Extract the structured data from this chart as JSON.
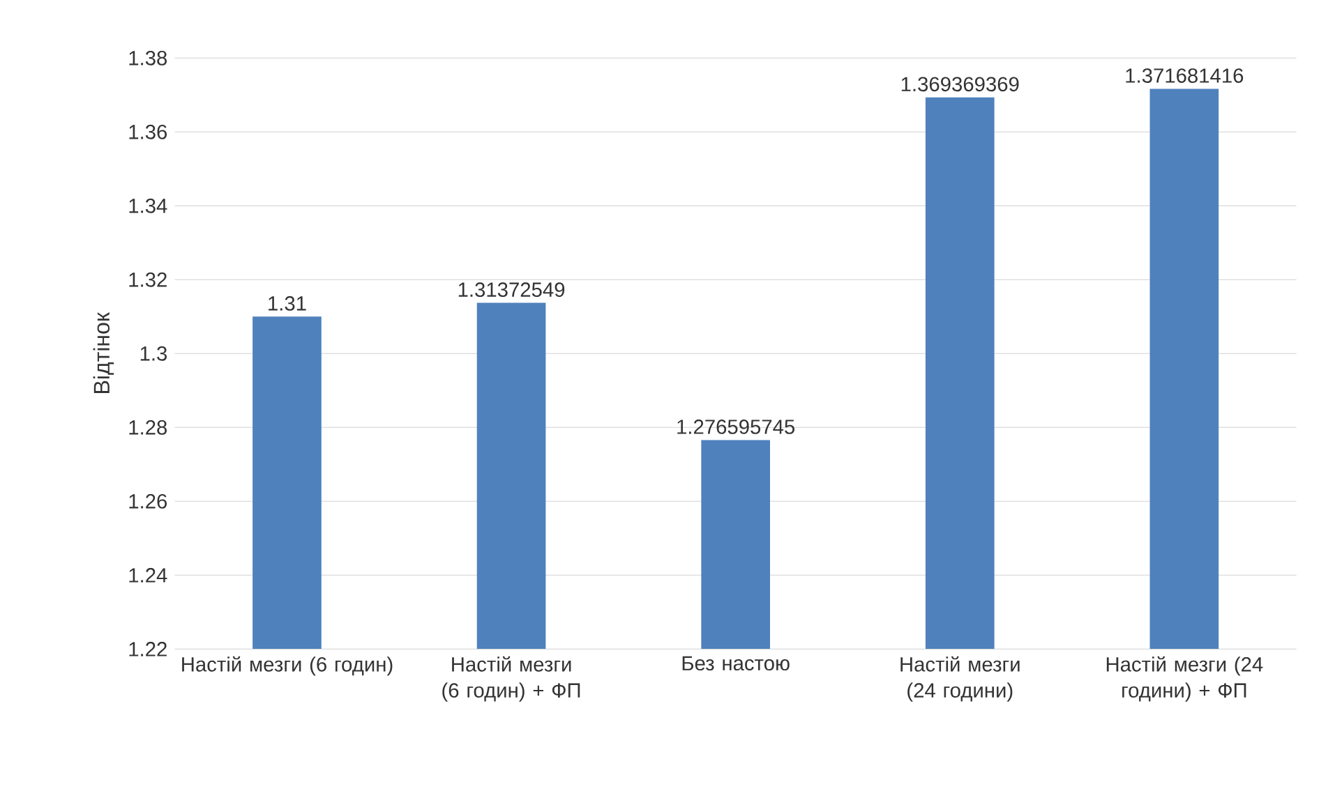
{
  "chart_data": {
    "type": "bar",
    "ylabel": "Відтінок",
    "categories": [
      "Настій мезги (6 годин)",
      "Настій мезги (6 годин) + ФП",
      "Без настою",
      "Настій мезги (24 години)",
      "Настій мезги (24 години) + ФП"
    ],
    "values": [
      1.31,
      1.31372549,
      1.276595745,
      1.369369369,
      1.371681416
    ],
    "color": "#4f81bd",
    "ylim": [
      1.22,
      1.38
    ],
    "yticks": [
      1.22,
      1.24,
      1.26,
      1.28,
      1.3,
      1.32,
      1.34,
      1.36,
      1.38
    ],
    "grid": "y",
    "data_labels": true
  }
}
